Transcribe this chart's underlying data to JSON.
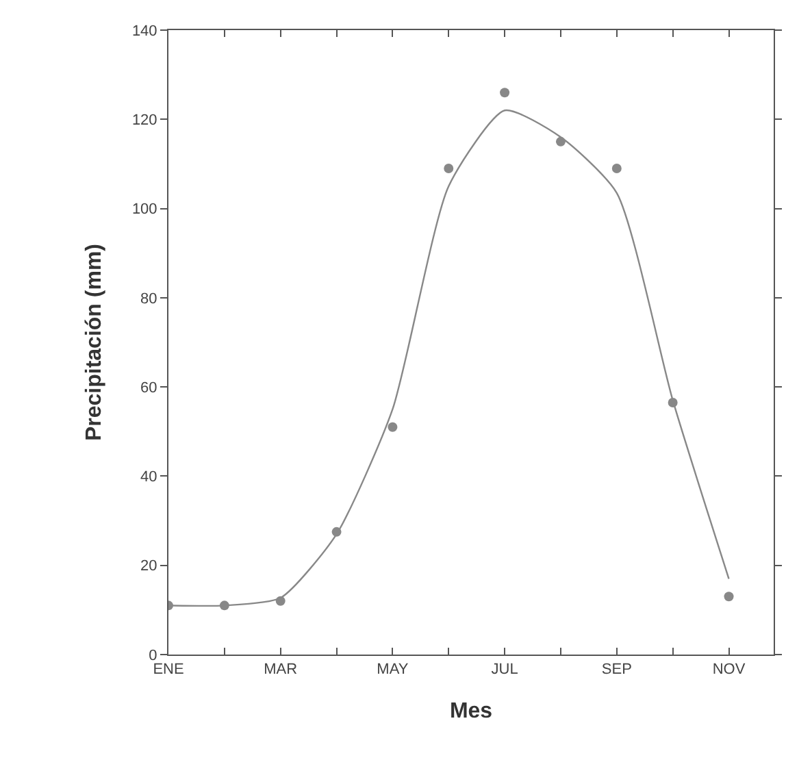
{
  "chart_data": {
    "type": "scatter",
    "xlabel": "Mes",
    "ylabel": "Precipitación (mm)",
    "categories": [
      "ENE",
      null,
      "MAR",
      null,
      "MAY",
      null,
      "JUL",
      null,
      "SEP",
      null,
      "NOV"
    ],
    "series": [
      {
        "color": "#888888",
        "marker": "circle",
        "values": [
          11,
          11,
          12,
          27.5,
          51,
          109,
          126,
          115,
          109,
          56.5,
          13
        ]
      },
      {
        "type": "line",
        "color": "#888888",
        "line_style": "solid",
        "values": [
          11,
          11,
          12.7,
          27,
          55,
          105,
          122,
          116,
          103.5,
          57,
          17
        ]
      }
    ],
    "ylim": [
      0,
      140
    ],
    "yticks": [
      0,
      20,
      40,
      60,
      80,
      100,
      120,
      140
    ],
    "legend": false
  }
}
